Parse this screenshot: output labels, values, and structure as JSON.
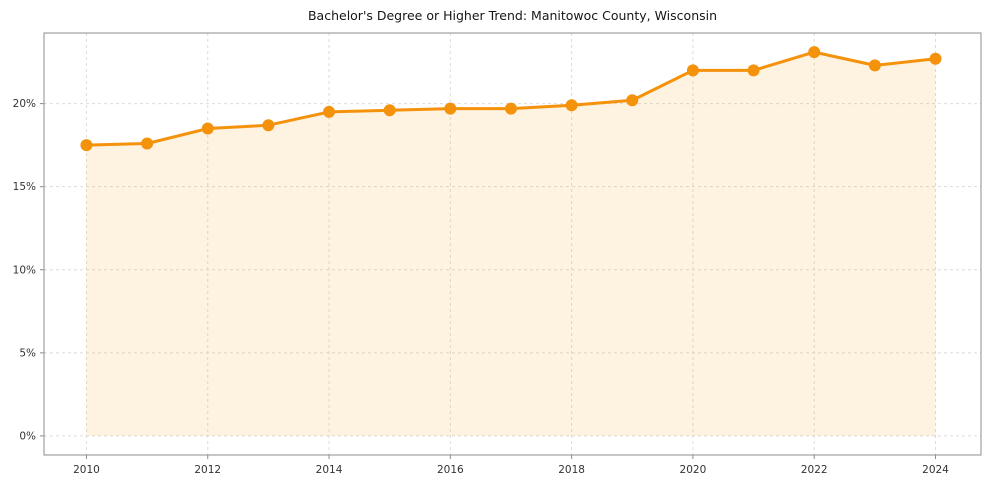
{
  "chart_data": {
    "type": "line",
    "title": "Bachelor's Degree or Higher Trend: Manitowoc County, Wisconsin",
    "x": [
      2010,
      2011,
      2012,
      2013,
      2014,
      2015,
      2016,
      2017,
      2018,
      2019,
      2020,
      2021,
      2022,
      2023,
      2024
    ],
    "values": [
      17.5,
      17.6,
      18.5,
      18.7,
      19.5,
      19.6,
      19.7,
      19.7,
      19.9,
      20.2,
      22.0,
      22.0,
      23.1,
      22.3,
      22.7
    ],
    "xlabel": "",
    "ylabel": "",
    "xlim": [
      2009.3,
      2024.75
    ],
    "ylim": [
      -1.15,
      24.25
    ],
    "xticks": [
      2010,
      2012,
      2014,
      2016,
      2018,
      2020,
      2022,
      2024
    ],
    "yticks": [
      0,
      5,
      10,
      15,
      20
    ],
    "ytick_suffix": "%",
    "grid": true,
    "legend_position": "none",
    "line_color": "#f5920b",
    "fill_color": "#f5920b",
    "fill_opacity": 0.12,
    "marker": "circle",
    "marker_radius": 6
  }
}
